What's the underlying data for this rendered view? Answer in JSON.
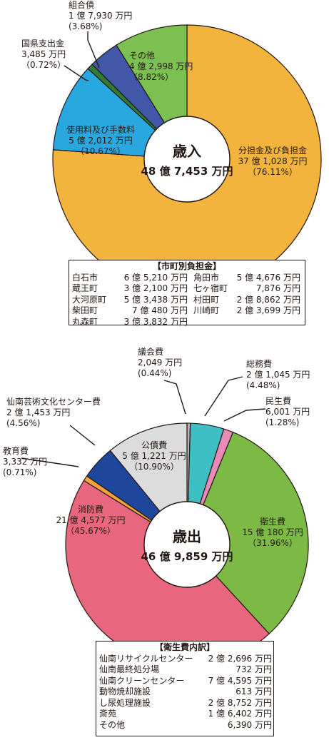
{
  "chart_data": [
    {
      "type": "pie",
      "title": "歳入",
      "total": "48 億 7,453 万円",
      "colors": {
        "bunsan": "#F3B43E",
        "shiyo": "#29A8E0",
        "kokken": "#2E7D32",
        "kumiai": "#4158A8",
        "sonota": "#7DC052"
      },
      "slices": [
        {
          "key": "bunsan",
          "name": "分担金及び負担金",
          "amount": "37 億 1,028 万円",
          "pct_label": "（76.11%）",
          "value": 76.11
        },
        {
          "key": "shiyo",
          "name": "使用料及び手数料",
          "amount": "5 億 2,012 万円",
          "pct_label": "（10.67%）",
          "value": 10.67
        },
        {
          "key": "kokken",
          "name": "国県支出金",
          "amount": "3,485 万円",
          "pct_label": "（0.72%）",
          "value": 0.72
        },
        {
          "key": "kumiai",
          "name": "組合債",
          "amount": "1 億 7,930 万円",
          "pct_label": "(3.68%)",
          "value": 3.68
        },
        {
          "key": "sonota",
          "name": "その他",
          "amount": "4 億 2,998 万円",
          "pct_label": "（8.82%）",
          "value": 8.82
        }
      ]
    },
    {
      "type": "pie",
      "title": "歳出",
      "total": "46 億 9,859 万円",
      "colors": {
        "gikai": "#B5B5B5",
        "somu": "#3DBFC3",
        "minsei": "#E98AB8",
        "eisei": "#7DBA45",
        "shobo": "#E8677E",
        "kyoiku": "#F3A33A",
        "geijutsu": "#1E479C",
        "kosai": "#DCDCDC"
      },
      "slices": [
        {
          "key": "gikai",
          "name": "議会費",
          "amount": "2,049 万円",
          "pct_label": "(0.44%)",
          "value": 0.44
        },
        {
          "key": "somu",
          "name": "総務費",
          "amount": "2 億 1,045 万円",
          "pct_label": "(4.48%)",
          "value": 4.48
        },
        {
          "key": "minsei",
          "name": "民生費",
          "amount": "6,001 万円",
          "pct_label": "(1.28%)",
          "value": 1.28
        },
        {
          "key": "eisei",
          "name": "衛生費",
          "amount": "15 億 180 万円",
          "pct_label": "（31.96%）",
          "value": 31.96
        },
        {
          "key": "shobo",
          "name": "消防費",
          "amount": "21 億 4,577 万円",
          "pct_label": "（45.67%）",
          "value": 45.67
        },
        {
          "key": "kyoiku",
          "name": "教育費",
          "amount": "3,332 万円",
          "pct_label": "(0.71%)",
          "value": 0.71
        },
        {
          "key": "geijutsu",
          "name": "仙南芸術文化センター費",
          "amount": "2 億 1,453 万円",
          "pct_label": "(4.56%)",
          "value": 4.56
        },
        {
          "key": "kosai",
          "name": "公債費",
          "amount": "5 億 1,221 万円",
          "pct_label": "（10.90%）",
          "value": 10.9
        }
      ]
    }
  ],
  "city_box": {
    "title": "【市町別負担金】",
    "left": [
      {
        "name": "白石市",
        "value": "6 億 5,210 万円"
      },
      {
        "name": "蔵王町",
        "value": "3 億 2,100 万円"
      },
      {
        "name": "大河原町",
        "value": "5 億 3,438 万円"
      },
      {
        "name": "柴田町",
        "value": "7 億 480 万円"
      },
      {
        "name": "丸森町",
        "value": "3 億 3,832 万円"
      }
    ],
    "right": [
      {
        "name": "角田市",
        "value": "5 億 4,676 万円"
      },
      {
        "name": "七ヶ宿町",
        "value": "7,876 万円"
      },
      {
        "name": "村田町",
        "value": "2 億 8,862 万円"
      },
      {
        "name": "川崎町",
        "value": "2 億 3,699 万円"
      }
    ]
  },
  "eisei_box": {
    "title": "【衛生費内訳】",
    "rows": [
      {
        "name": "仙南リサイクルセンター",
        "value": "2 億 2,696 万円"
      },
      {
        "name": "仙南最終処分場",
        "value": "732 万円"
      },
      {
        "name": "仙南クリーンセンター",
        "value": "7 億 4,595 万円"
      },
      {
        "name": "動物焼却施設",
        "value": "613 万円"
      },
      {
        "name": "し尿処理施設",
        "value": "2 億 8,752 万円"
      },
      {
        "name": "斎苑",
        "value": "1 億 6,402 万円"
      },
      {
        "name": "その他",
        "value": "6,390 万円"
      }
    ]
  }
}
